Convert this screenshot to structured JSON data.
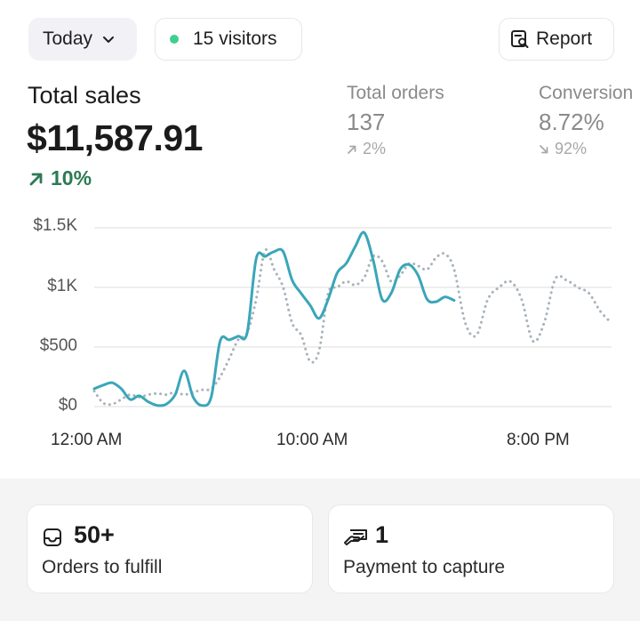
{
  "header": {
    "period_label": "Today",
    "visitors_label": "15 visitors",
    "visitors_dot_color": "#3ecf8e",
    "report_label": "Report"
  },
  "total_sales": {
    "label": "Total sales",
    "value": "$11,587.91",
    "change": "10%",
    "change_color": "#2c7a54"
  },
  "total_orders": {
    "label": "Total orders",
    "value": "137",
    "change": "2%"
  },
  "conversion": {
    "label": "Conversion",
    "value": "8.72%",
    "change": "92%"
  },
  "chart_data": {
    "type": "line",
    "y_ticks": [
      "$1.5K",
      "$1K",
      "$500",
      "$0"
    ],
    "x_ticks": [
      "12:00 AM",
      "10:00 AM",
      "8:00 PM"
    ],
    "ylim": [
      0,
      1500
    ],
    "grid": true,
    "series": [
      {
        "style": "solid",
        "color": "#3aa6b9",
        "x": [
          0,
          0.4,
          0.8,
          1.2,
          1.6,
          2.0,
          2.4,
          2.8,
          3.2,
          3.6,
          4.0,
          4.4,
          4.8,
          5.2,
          5.6,
          6.0,
          6.4,
          6.8,
          7.2,
          7.6,
          8.0,
          8.4,
          8.8,
          9.2,
          9.6,
          10.0,
          10.4,
          10.8,
          11.2,
          11.6,
          12.0,
          12.4,
          12.8,
          13.2,
          13.6,
          14.0,
          14.4,
          14.8,
          15.2,
          15.6,
          16.0
        ],
        "y": [
          150,
          180,
          200,
          150,
          60,
          90,
          40,
          10,
          20,
          100,
          300,
          80,
          10,
          80,
          550,
          560,
          590,
          620,
          1240,
          1260,
          1300,
          1300,
          1060,
          950,
          850,
          740,
          900,
          1120,
          1200,
          1340,
          1460,
          1230,
          900,
          950,
          1150,
          1190,
          1100,
          900,
          880,
          920,
          890
        ]
      },
      {
        "style": "dotted",
        "color": "#a9b3bb",
        "x": [
          0,
          0.4,
          0.8,
          1.2,
          1.6,
          2.0,
          2.4,
          2.8,
          3.2,
          3.6,
          4.0,
          4.4,
          4.8,
          5.2,
          5.6,
          6.0,
          6.4,
          6.8,
          7.2,
          7.6,
          8.0,
          8.4,
          8.8,
          9.2,
          9.6,
          10.0,
          10.4,
          10.8,
          11.2,
          11.6,
          12.0,
          12.4,
          12.8,
          13.2,
          13.6,
          14.0,
          14.4,
          14.8,
          15.2,
          15.6,
          16.0,
          16.5,
          17.0,
          17.5,
          18.0,
          18.5,
          19.0,
          19.5,
          20.0,
          20.5,
          21.0,
          21.5,
          22.0,
          22.5,
          23.0
        ],
        "y": [
          130,
          30,
          20,
          60,
          100,
          80,
          100,
          110,
          100,
          120,
          100,
          120,
          140,
          150,
          250,
          400,
          560,
          620,
          900,
          1310,
          1150,
          1000,
          700,
          600,
          380,
          470,
          950,
          1000,
          1050,
          1020,
          1080,
          1260,
          1220,
          1050,
          1100,
          1200,
          1180,
          1150,
          1250,
          1280,
          1150,
          700,
          600,
          900,
          1000,
          1050,
          900,
          550,
          700,
          1070,
          1060,
          1000,
          950,
          800,
          700
        ]
      }
    ]
  },
  "cards": [
    {
      "value": "50+",
      "label": "Orders to fulfill",
      "icon": "inbox-icon"
    },
    {
      "value": "1",
      "label": "Payment to capture",
      "icon": "payment-hand-icon"
    }
  ]
}
